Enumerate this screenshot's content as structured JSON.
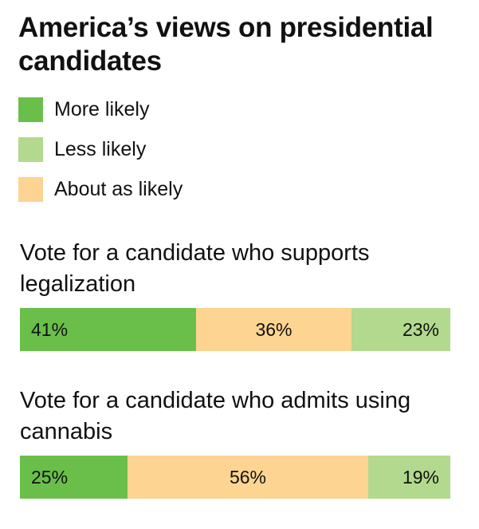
{
  "title": "America’s views on presidential candidates",
  "colors": {
    "more_likely": "#6abf4b",
    "less_likely": "#b2d98d",
    "about_as_likely": "#fdd491"
  },
  "legend": [
    {
      "label": "More likely",
      "color": "#6abf4b"
    },
    {
      "label": "Less likely",
      "color": "#b2d98d"
    },
    {
      "label": "About as likely",
      "color": "#fdd491"
    }
  ],
  "chart_data": [
    {
      "type": "bar",
      "orientation": "horizontal-stacked",
      "title": "Vote for a candidate who supports legalization",
      "xlim": [
        0,
        100
      ],
      "segments": [
        {
          "series": "More likely",
          "value": 41,
          "label": "41%",
          "color": "#6abf4b"
        },
        {
          "series": "About as likely",
          "value": 36,
          "label": "36%",
          "color": "#fdd491"
        },
        {
          "series": "Less likely",
          "value": 23,
          "label": "23%",
          "color": "#b2d98d"
        }
      ]
    },
    {
      "type": "bar",
      "orientation": "horizontal-stacked",
      "title": "Vote for a candidate who admits using cannabis",
      "xlim": [
        0,
        100
      ],
      "segments": [
        {
          "series": "More likely",
          "value": 25,
          "label": "25%",
          "color": "#6abf4b"
        },
        {
          "series": "About as likely",
          "value": 56,
          "label": "56%",
          "color": "#fdd491"
        },
        {
          "series": "Less likely",
          "value": 19,
          "label": "19%",
          "color": "#b2d98d"
        }
      ]
    }
  ]
}
